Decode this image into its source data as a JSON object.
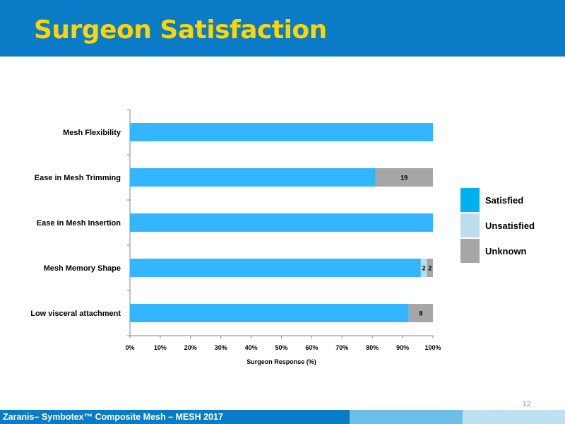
{
  "slide": {
    "title": "Surgeon Satisfaction",
    "page_number": "12",
    "footer_text": "Zaranis– Symbotex™ Composite Mesh – MESH 2017",
    "colors": {
      "header": "#0a7cc7",
      "title": "#ffd400",
      "footer_dark": "#0a7cc7",
      "footer_mid": "#6cc0e8",
      "footer_light": "#bde0f3"
    }
  },
  "legend": {
    "items": [
      {
        "label": "Satisfied",
        "color": "#00b0f0"
      },
      {
        "label": "Unsatisfied",
        "color": "#bcdcf0"
      },
      {
        "label": "Unknown",
        "color": "#a6a6a6"
      }
    ]
  },
  "chart_data": {
    "type": "bar",
    "orientation": "horizontal",
    "stacked": true,
    "categories": [
      "Mesh Flexibility",
      "Ease in Mesh Trimming",
      "Ease in Mesh Insertion",
      "Mesh Memory Shape",
      "Low visceral attachment"
    ],
    "series": [
      {
        "name": "Satisfied",
        "color": "#33b5ff",
        "values": [
          100,
          81,
          100,
          96,
          92
        ]
      },
      {
        "name": "Unsatisfied",
        "color": "#bcdcf0",
        "values": [
          0,
          0,
          0,
          2,
          0
        ]
      },
      {
        "name": "Unknown",
        "color": "#a6a6a6",
        "values": [
          0,
          19,
          0,
          2,
          8
        ]
      }
    ],
    "data_labels": [
      {
        "category": 1,
        "series": 2,
        "text": "19"
      },
      {
        "category": 3,
        "series": 1,
        "text": "2"
      },
      {
        "category": 3,
        "series": 2,
        "text": "2"
      },
      {
        "category": 4,
        "series": 2,
        "text": "8"
      }
    ],
    "xlabel": "Surgeon Response (%)",
    "xlim": [
      0,
      100
    ],
    "xticks": [
      "0%",
      "10%",
      "20%",
      "30%",
      "40%",
      "50%",
      "60%",
      "70%",
      "80%",
      "90%",
      "100%"
    ],
    "grid": false,
    "legend_position": "right"
  }
}
